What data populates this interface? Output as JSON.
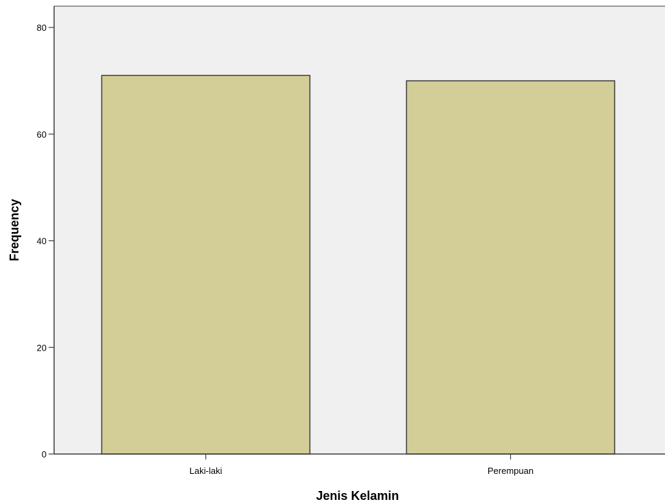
{
  "chart_data": {
    "type": "bar",
    "title": "",
    "xlabel": "Jenis Kelamin",
    "ylabel": "Frequency",
    "categories": [
      "Laki-laki",
      "Perempuan"
    ],
    "values": [
      71,
      70
    ],
    "ylim": [
      0,
      84
    ],
    "yticks": [
      "0",
      "20",
      "40",
      "60",
      "80"
    ],
    "grid": false,
    "legend": "none",
    "colors": {
      "bar_fill": "#d3cd98",
      "bar_stroke": "#3c3c3c",
      "plot_background": "#f0f0f0",
      "axis": "#3c3c3c"
    }
  }
}
